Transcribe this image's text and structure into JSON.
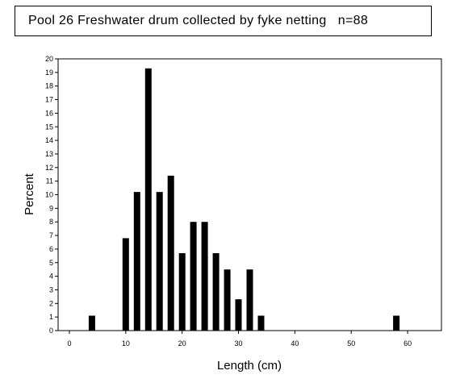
{
  "chart_data": {
    "type": "bar",
    "title": "Pool 26 Freshwater drum collected by fyke netting",
    "annotation": "n=88",
    "xlabel": "Length (cm)",
    "ylabel": "Percent",
    "xlim": [
      -2,
      66
    ],
    "ylim": [
      0,
      20
    ],
    "xticks": [
      0,
      10,
      20,
      30,
      40,
      50,
      60
    ],
    "yticks": [
      0,
      1,
      2,
      3,
      4,
      5,
      6,
      7,
      8,
      9,
      10,
      11,
      12,
      13,
      14,
      15,
      16,
      17,
      18,
      19,
      20
    ],
    "grid": false,
    "x": [
      4,
      10,
      12,
      14,
      16,
      18,
      20,
      22,
      24,
      26,
      28,
      30,
      32,
      34,
      58
    ],
    "values": [
      1.1,
      6.8,
      10.2,
      19.3,
      10.2,
      11.4,
      5.7,
      8.0,
      8.0,
      5.7,
      4.5,
      2.3,
      4.5,
      1.1,
      1.1
    ],
    "bar_color": "#000000"
  }
}
